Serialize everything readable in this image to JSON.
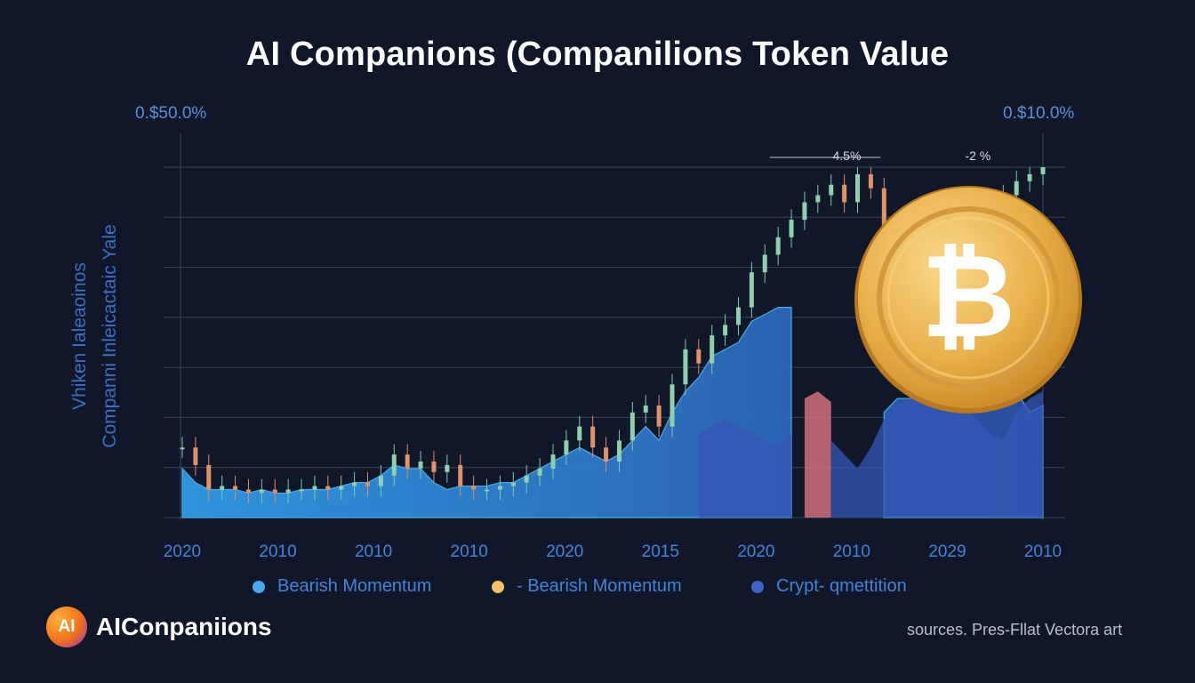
{
  "chart_data": {
    "type": "line",
    "title": "AI Companions (Companilions Token Value",
    "ylabel": "Vhiken Ialeaoinos Companni Inleicactaic Yale",
    "ylabel_lines": [
      "Vhiken Ialeaoinos",
      "Companni Inleicactaic Yale"
    ],
    "axis_top_left": "0.$50.0%",
    "axis_top_right": "0.$10.0%",
    "x_tick_labels": [
      "2020",
      "2010",
      "2010",
      "2010",
      "2020",
      "2015",
      "2020",
      "2010",
      "2029",
      "2010"
    ],
    "ylim": [
      0,
      100
    ],
    "annotations": [
      {
        "label": "4.5%",
        "at_index": 51
      },
      {
        "label": "-2 %",
        "at_index": 61
      }
    ],
    "legend_placement": "bottom",
    "grid": true,
    "series": [
      {
        "name": "Bearish Momentum",
        "style": "candlestick-line",
        "color": "#d89a6a",
        "values": [
          20,
          15,
          8,
          9,
          8,
          7,
          8,
          7,
          8,
          8,
          9,
          8,
          9,
          10,
          9,
          12,
          18,
          14,
          16,
          13,
          15,
          9,
          8,
          8,
          9,
          10,
          12,
          14,
          18,
          22,
          26,
          20,
          16,
          22,
          30,
          32,
          26,
          38,
          48,
          44,
          52,
          55,
          60,
          70,
          75,
          80,
          85,
          90,
          92,
          95,
          90,
          98,
          94,
          80,
          75,
          85,
          78,
          82,
          79,
          80,
          83,
          88,
          92,
          96,
          98,
          100
        ]
      },
      {
        "name": "Bearish Momentum",
        "style": "area",
        "color": "#3aa0e8",
        "values": [
          14,
          10,
          8,
          8,
          8,
          7,
          8,
          7,
          7,
          8,
          8,
          8,
          9,
          10,
          10,
          12,
          15,
          14,
          14,
          10,
          8,
          9,
          9,
          9,
          10,
          10,
          12,
          14,
          16,
          18,
          20,
          18,
          16,
          18,
          22,
          26,
          22,
          30,
          36,
          40,
          46,
          48,
          50,
          56,
          58,
          60,
          60,
          0,
          0,
          0,
          0,
          0,
          0,
          30,
          34,
          34,
          36,
          40,
          40,
          42,
          41,
          40,
          38,
          36,
          30,
          32
        ]
      },
      {
        "name": "Crypt- qmettition",
        "style": "area",
        "color": "#3557b6",
        "values": [
          0,
          0,
          0,
          0,
          0,
          0,
          0,
          0,
          0,
          0,
          0,
          0,
          0,
          0,
          0,
          0,
          0,
          0,
          0,
          0,
          0,
          0,
          0,
          0,
          0,
          0,
          0,
          0,
          0,
          0,
          0,
          0,
          0,
          0,
          0,
          0,
          0,
          0,
          0,
          24,
          26,
          28,
          26,
          24,
          22,
          20,
          24,
          0,
          0,
          22,
          18,
          14,
          20,
          28,
          32,
          34,
          34,
          36,
          34,
          32,
          28,
          24,
          22,
          30,
          34,
          36
        ]
      },
      {
        "name": "Bearish Momentum",
        "style": "highlight",
        "color": "#d1707a",
        "values": [
          0,
          0,
          0,
          0,
          0,
          0,
          0,
          0,
          0,
          0,
          0,
          0,
          0,
          0,
          0,
          0,
          0,
          0,
          0,
          0,
          0,
          0,
          0,
          0,
          0,
          0,
          0,
          0,
          0,
          0,
          0,
          0,
          0,
          0,
          0,
          0,
          0,
          0,
          0,
          0,
          0,
          0,
          0,
          0,
          0,
          0,
          0,
          34,
          36,
          33,
          0,
          0,
          0,
          0,
          0,
          0,
          0,
          0,
          0,
          0,
          0,
          0,
          0,
          0,
          0,
          0
        ]
      }
    ]
  },
  "legend": [
    {
      "label": "Bearish Momentum",
      "color": "#4aa8ec"
    },
    {
      "label": "- Bearish Momentum",
      "color": "#f2c56b"
    },
    {
      "label": "Crypt- qmettition",
      "color": "#3d63c8"
    }
  ],
  "brand": {
    "logo_text": "AI",
    "name": "AIConpaniions"
  },
  "source": "sources. Pres-Fllat Vectora art",
  "coin": {
    "icon": "bitcoin-coin-icon",
    "glyph": "₿",
    "color": "#e8b54a"
  }
}
